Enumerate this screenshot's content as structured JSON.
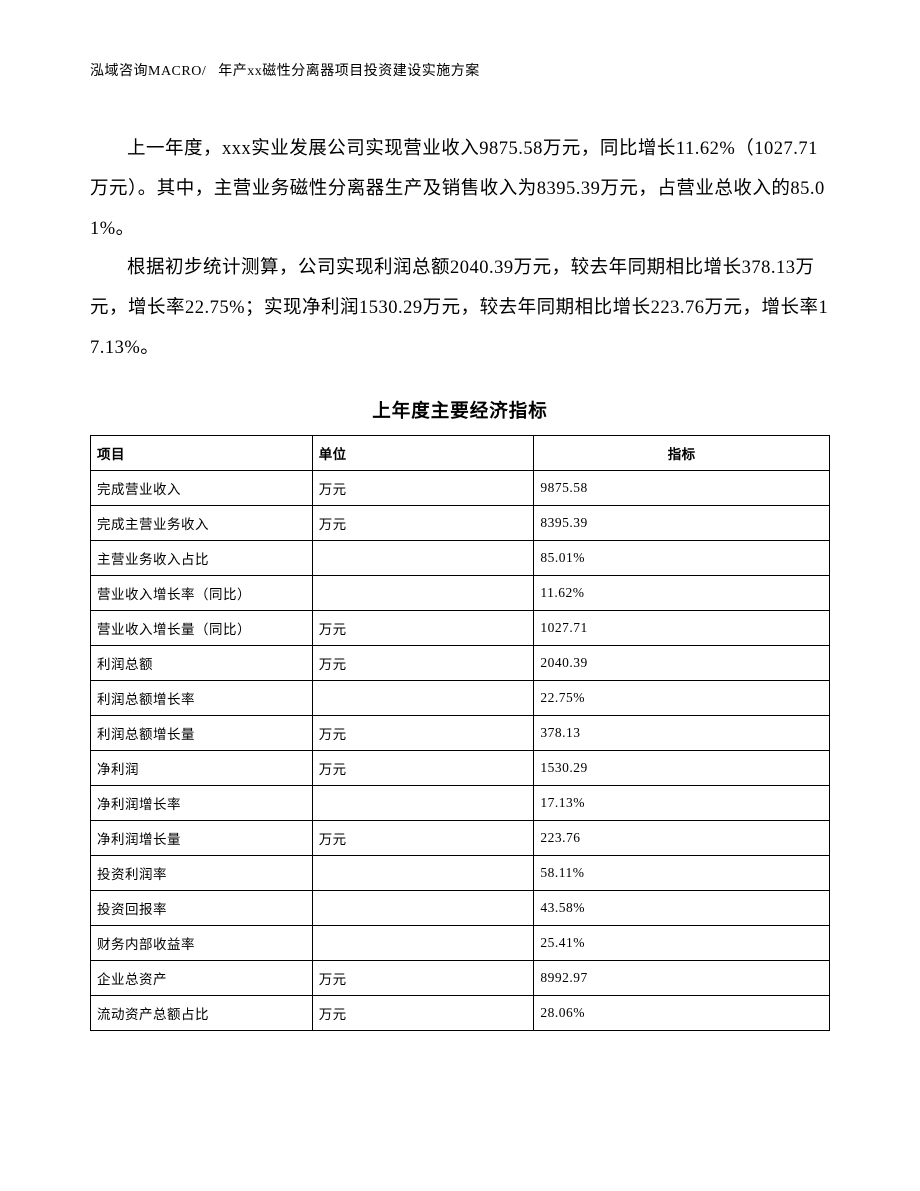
{
  "header": {
    "left": "泓域咨询MACRO/",
    "right": "年产xx磁性分离器项目投资建设实施方案"
  },
  "paragraphs": {
    "p1": "上一年度，xxx实业发展公司实现营业收入9875.58万元，同比增长11.62%（1027.71万元）。其中，主营业务磁性分离器生产及销售收入为8395.39万元，占营业总收入的85.01%。",
    "p2": "根据初步统计测算，公司实现利润总额2040.39万元，较去年同期相比增长378.13万元，增长率22.75%；实现净利润1530.29万元，较去年同期相比增长223.76万元，增长率17.13%。"
  },
  "table": {
    "title": "上年度主要经济指标",
    "columns": {
      "c1": "项目",
      "c2": "单位",
      "c3": "指标"
    },
    "rows": [
      {
        "c1": "完成营业收入",
        "c2": "万元",
        "c3": "9875.58"
      },
      {
        "c1": "完成主营业务收入",
        "c2": "万元",
        "c3": "8395.39"
      },
      {
        "c1": "主营业务收入占比",
        "c2": "",
        "c3": "85.01%"
      },
      {
        "c1": "营业收入增长率（同比）",
        "c2": "",
        "c3": "11.62%"
      },
      {
        "c1": "营业收入增长量（同比）",
        "c2": "万元",
        "c3": "1027.71"
      },
      {
        "c1": "利润总额",
        "c2": "万元",
        "c3": "2040.39"
      },
      {
        "c1": "利润总额增长率",
        "c2": "",
        "c3": "22.75%"
      },
      {
        "c1": "利润总额增长量",
        "c2": "万元",
        "c3": "378.13"
      },
      {
        "c1": "净利润",
        "c2": "万元",
        "c3": "1530.29"
      },
      {
        "c1": "净利润增长率",
        "c2": "",
        "c3": "17.13%"
      },
      {
        "c1": "净利润增长量",
        "c2": "万元",
        "c3": "223.76"
      },
      {
        "c1": "投资利润率",
        "c2": "",
        "c3": "58.11%"
      },
      {
        "c1": "投资回报率",
        "c2": "",
        "c3": "43.58%"
      },
      {
        "c1": "财务内部收益率",
        "c2": "",
        "c3": "25.41%"
      },
      {
        "c1": "企业总资产",
        "c2": "万元",
        "c3": "8992.97"
      },
      {
        "c1": "流动资产总额占比",
        "c2": "万元",
        "c3": "28.06%"
      }
    ]
  }
}
